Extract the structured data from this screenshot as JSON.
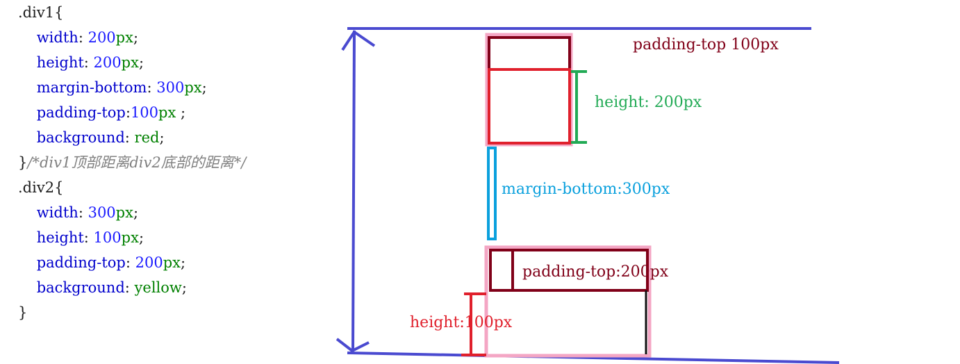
{
  "code": {
    "div1_selector": ".div1",
    "div1_props": [
      {
        "name": "width",
        "sep": ": ",
        "num": "200",
        "unit": "px",
        "end": ";"
      },
      {
        "name": "height",
        "sep": ": ",
        "num": "200",
        "unit": "px",
        "end": ";"
      },
      {
        "name": "margin-bottom",
        "sep": ": ",
        "num": "300",
        "unit": "px",
        "end": ";"
      },
      {
        "name": "padding-top",
        "sep": ":",
        "num": "100",
        "unit": "px",
        "end": " ;"
      }
    ],
    "div1_background": {
      "name": "background",
      "sep": ": ",
      "value": "red",
      "end": ";"
    },
    "comment": "/*div1顶部距离div2底部的距离*/",
    "div2_selector": ".div2",
    "div2_props": [
      {
        "name": "width",
        "sep": ": ",
        "num": "300",
        "unit": "px",
        "end": ";"
      },
      {
        "name": "height",
        "sep": ": ",
        "num": "100",
        "unit": "px",
        "end": ";"
      },
      {
        "name": "padding-top",
        "sep": ": ",
        "num": "200",
        "unit": "px",
        "end": ";"
      }
    ],
    "div2_background": {
      "name": "background",
      "sep": ": ",
      "value": "yellow",
      "end": ";"
    },
    "open_brace": "{",
    "close_brace": "}"
  },
  "annotations": {
    "div1_padding_top": "padding-top 100px",
    "div1_height": "height: 200px",
    "margin_bottom": "margin-bottom:300px",
    "div2_padding_top": "padding-top:200px",
    "div2_height": "height:100px"
  },
  "colors": {
    "measure_arrow": "#4a4ad0",
    "outline_pink": "#f4a6c4",
    "dark_red": "#800018",
    "red": "#e0202c",
    "green": "#22aa55",
    "cyan": "#0aa0dd"
  }
}
